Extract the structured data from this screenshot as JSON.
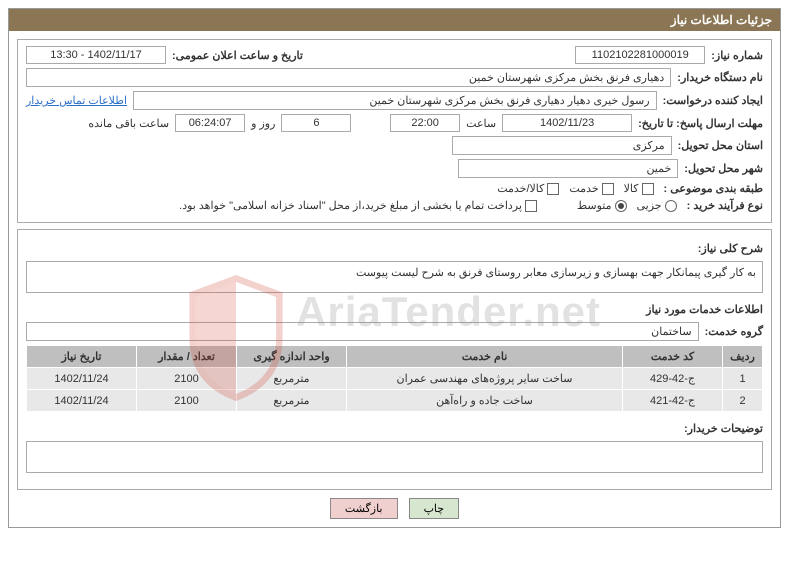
{
  "header_title": "جزئیات اطلاعات نیاز",
  "fields": {
    "need_no_label": "شماره نیاز:",
    "need_no": "1102102281000019",
    "announce_label": "تاریخ و ساعت اعلان عمومی:",
    "announce": "1402/11/17 - 13:30",
    "buyer_label": "نام دستگاه خریدار:",
    "buyer": "دهیاری فرنق بخش مرکزی شهرستان خمین",
    "requester_label": "ایجاد کننده درخواست:",
    "requester": "رسول خیری دهیار دهیاری فرنق بخش مرکزی شهرستان خمین",
    "contact_link": "اطلاعات تماس خریدار",
    "deadline_label": "مهلت ارسال پاسخ: تا تاریخ:",
    "deadline_date": "1402/11/23",
    "time_label": "ساعت",
    "deadline_time": "22:00",
    "days_value": "6",
    "days_label": "روز و",
    "countdown": "06:24:07",
    "remaining_label": "ساعت باقی مانده",
    "province_label": "استان محل تحویل:",
    "province": "مرکزی",
    "city_label": "شهر محل تحویل:",
    "city": "خمین",
    "category_label": "طبقه بندی موضوعی :",
    "cat_goods": "کالا",
    "cat_service": "خدمت",
    "cat_goods_service": "کالا/خدمت",
    "process_label": "نوع فرآیند خرید :",
    "proc_partial": "جزیی",
    "proc_medium": "متوسط",
    "payment_note": "پرداخت تمام یا بخشی از مبلغ خرید،از محل \"اسناد خزانه اسلامی\" خواهد بود."
  },
  "desc": {
    "label": "شرح کلی نیاز:",
    "text": "به کار گیری پیمانکار جهت بهسازی و زیرسازی معابر روستای فرنق به شرح لیست پیوست"
  },
  "service_info_label": "اطلاعات خدمات مورد نیاز",
  "group_label": "گروه خدمت:",
  "group_value": "ساختمان",
  "table": {
    "columns": [
      "ردیف",
      "کد خدمت",
      "نام خدمت",
      "واحد اندازه گیری",
      "تعداد / مقدار",
      "تاریخ نیاز"
    ],
    "rows": [
      [
        "1",
        "ج-42-429",
        "ساخت سایر پروژه‌های مهندسی عمران",
        "مترمربع",
        "2100",
        "1402/11/24"
      ],
      [
        "2",
        "ج-42-421",
        "ساخت جاده و راه‌آهن",
        "مترمربع",
        "2100",
        "1402/11/24"
      ]
    ],
    "col_widths": [
      "40px",
      "100px",
      "auto",
      "110px",
      "100px",
      "110px"
    ]
  },
  "buyer_notes_label": "توضیحات خریدار:",
  "buttons": {
    "print": "چاپ",
    "back": "بازگشت"
  },
  "watermark_text": "AriaTender.net",
  "colors": {
    "header_bg": "#8a7555",
    "header_fg": "#ffffff",
    "link": "#2a6fc9",
    "th_bg": "#bfbfbf",
    "td_bg": "#e8e8e8",
    "btn_print": "#d6e6cf",
    "btn_back": "#f0cfcf",
    "watermark_red": "#d24a3a"
  }
}
